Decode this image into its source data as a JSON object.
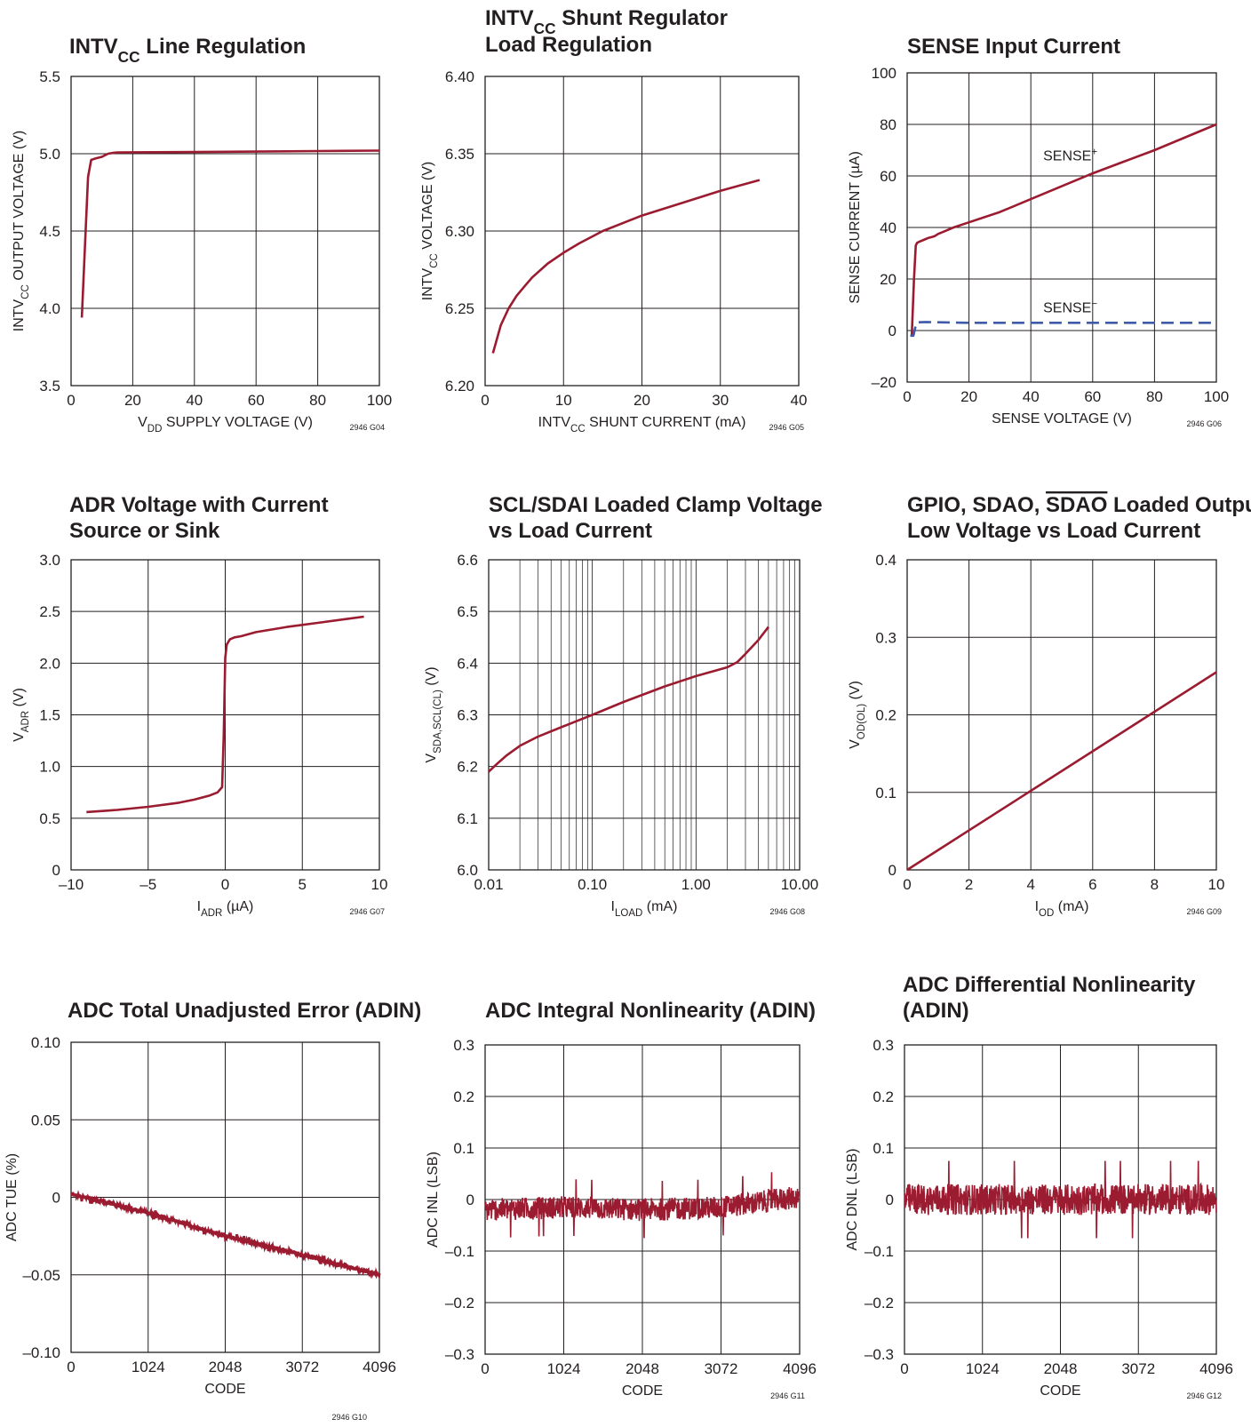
{
  "colors": {
    "curve": "#9b1b30",
    "dashed": "#3e5aa8",
    "ink": "#231f20"
  },
  "chart_data": [
    {
      "type": "line",
      "title": [
        "INTV|CC| Line Regulation"
      ],
      "xlabel": "V|DD| SUPPLY VOLTAGE (V)",
      "ylabel": "INTV|CC| OUTPUT VOLTAGE (V)",
      "code": "2946 G04",
      "xlim": [
        0,
        100
      ],
      "ylim": [
        3.5,
        5.5
      ],
      "xticks": [
        0,
        20,
        40,
        60,
        80,
        100
      ],
      "xtick_labels": [
        "0",
        "20",
        "40",
        "60",
        "80",
        "100"
      ],
      "yticks": [
        3.5,
        4.0,
        4.5,
        5.0,
        5.5
      ],
      "ytick_labels": [
        "3.5",
        "4.0",
        "4.5",
        "5.0",
        "5.5"
      ],
      "grid": true,
      "series": [
        {
          "x": [
            3.5,
            4.5,
            5.5,
            6.5,
            8,
            10,
            12,
            13.5,
            15,
            20,
            40,
            60,
            80,
            100
          ],
          "y": [
            3.94,
            4.4,
            4.85,
            4.96,
            4.97,
            4.98,
            5.0,
            5.005,
            5.008,
            5.009,
            5.011,
            5.014,
            5.017,
            5.02
          ]
        }
      ]
    },
    {
      "type": "line",
      "title": [
        "INTV|CC| Shunt Regulator",
        "Load Regulation"
      ],
      "xlabel": "INTV|CC| SHUNT CURRENT (mA)",
      "ylabel": "INTV|CC| VOLTAGE (V)",
      "code": "2946 G05",
      "xlim": [
        0,
        40
      ],
      "ylim": [
        6.2,
        6.4
      ],
      "xticks": [
        0,
        10,
        20,
        30,
        40
      ],
      "xtick_labels": [
        "0",
        "10",
        "20",
        "30",
        "40"
      ],
      "yticks": [
        6.2,
        6.25,
        6.3,
        6.35,
        6.4
      ],
      "ytick_labels": [
        "6.20",
        "6.25",
        "6.30",
        "6.35",
        "6.40"
      ],
      "grid": true,
      "series": [
        {
          "x": [
            1,
            1.5,
            2,
            3,
            4,
            5,
            6,
            8,
            10,
            12,
            15,
            20,
            25,
            30,
            35
          ],
          "y": [
            6.221,
            6.23,
            6.239,
            6.25,
            6.258,
            6.264,
            6.27,
            6.279,
            6.286,
            6.292,
            6.3,
            6.31,
            6.318,
            6.326,
            6.333
          ]
        }
      ]
    },
    {
      "type": "line",
      "title": [
        "SENSE Input Current"
      ],
      "xlabel": "SENSE VOLTAGE (V)",
      "ylabel": "SENSE CURRENT (µA)",
      "code": "2946 G06",
      "xlim": [
        0,
        100
      ],
      "ylim": [
        -20,
        100
      ],
      "xticks": [
        0,
        20,
        40,
        60,
        80,
        100
      ],
      "xtick_labels": [
        "0",
        "20",
        "40",
        "60",
        "80",
        "100"
      ],
      "yticks": [
        -20,
        0,
        20,
        40,
        60,
        80,
        100
      ],
      "ytick_labels": [
        "–20",
        "0",
        "20",
        "40",
        "60",
        "80",
        "100"
      ],
      "grid": true,
      "series": [
        {
          "name": "SENSE|+|",
          "x": [
            1.5,
            2.2,
            2.8,
            3.2,
            4,
            5,
            6,
            7,
            8,
            9,
            10,
            12,
            15,
            20,
            30,
            40,
            50,
            60,
            70,
            80,
            90,
            100
          ],
          "y": [
            -2,
            20,
            33,
            34,
            34.5,
            35,
            35.5,
            36,
            36.3,
            36.7,
            37.5,
            38.5,
            40,
            42,
            46,
            51,
            56,
            61,
            65.5,
            70,
            75,
            80
          ]
        },
        {
          "name": "SENSE|−|",
          "style": "dashed",
          "x": [
            1,
            2,
            3,
            4,
            6,
            10,
            20,
            40,
            60,
            80,
            100
          ],
          "y": [
            -2,
            -2,
            3,
            3.2,
            3.3,
            3.2,
            3,
            3,
            3,
            3,
            3
          ]
        }
      ],
      "annotations": [
        "SENSE|+|",
        "SENSE|−|"
      ]
    },
    {
      "type": "line",
      "title": [
        "ADR Voltage with Current",
        "Source or Sink"
      ],
      "xlabel": "I|ADR| (µA)",
      "ylabel": "V|ADR| (V)",
      "code": "2946 G07",
      "xlim": [
        -10,
        10
      ],
      "ylim": [
        0,
        3.0
      ],
      "xticks": [
        -10,
        -5,
        0,
        5,
        10
      ],
      "xtick_labels": [
        "–10",
        "–5",
        "0",
        "5",
        "10"
      ],
      "yticks": [
        0,
        0.5,
        1.0,
        1.5,
        2.0,
        2.5,
        3.0
      ],
      "ytick_labels": [
        "0",
        "0.5",
        "1.0",
        "1.5",
        "2.0",
        "2.5",
        "3.0"
      ],
      "grid": true,
      "series": [
        {
          "x": [
            -9,
            -7,
            -5,
            -3,
            -2,
            -1,
            -0.5,
            -0.2,
            -0.1,
            0,
            0.1,
            0.3,
            0.6,
            1,
            2,
            4,
            6,
            8,
            9
          ],
          "y": [
            0.56,
            0.58,
            0.61,
            0.65,
            0.68,
            0.72,
            0.75,
            0.8,
            1.3,
            2.05,
            2.18,
            2.23,
            2.25,
            2.26,
            2.3,
            2.35,
            2.39,
            2.43,
            2.45
          ]
        }
      ]
    },
    {
      "type": "line",
      "title": [
        "SCL/SDAI Loaded Clamp Voltage",
        "vs Load Current"
      ],
      "xlabel": "I|LOAD| (mA)",
      "ylabel": "V|SDA,SCL(CL)| (V)",
      "code": "2946 G08",
      "xscale": "log",
      "xlim": [
        0.01,
        10
      ],
      "ylim": [
        6.0,
        6.6
      ],
      "xticks": [
        0.01,
        0.1,
        1,
        10
      ],
      "xtick_labels": [
        "0.01",
        "0.10",
        "1.00",
        "10.00"
      ],
      "yticks": [
        6.0,
        6.1,
        6.2,
        6.3,
        6.4,
        6.5,
        6.6
      ],
      "ytick_labels": [
        "6.0",
        "6.1",
        "6.2",
        "6.3",
        "6.4",
        "6.5",
        "6.6"
      ],
      "grid": true,
      "series": [
        {
          "x": [
            0.01,
            0.012,
            0.015,
            0.02,
            0.03,
            0.05,
            0.1,
            0.2,
            0.5,
            1,
            1.5,
            2,
            2.5,
            3,
            4,
            5
          ],
          "y": [
            6.19,
            6.205,
            6.222,
            6.24,
            6.258,
            6.276,
            6.3,
            6.325,
            6.355,
            6.375,
            6.385,
            6.392,
            6.402,
            6.418,
            6.445,
            6.47
          ]
        }
      ]
    },
    {
      "type": "line",
      "title": [
        "GPIO, SDAO, |ov:SDAO| Loaded Output",
        "Low Voltage vs Load Current"
      ],
      "xlabel": "I|OD| (mA)",
      "ylabel": "V|OD(OL)| (V)",
      "code": "2946 G09",
      "xlim": [
        0,
        10
      ],
      "ylim": [
        0,
        0.4
      ],
      "xticks": [
        0,
        2,
        4,
        6,
        8,
        10
      ],
      "xtick_labels": [
        "0",
        "2",
        "4",
        "6",
        "8",
        "10"
      ],
      "yticks": [
        0,
        0.1,
        0.2,
        0.3,
        0.4
      ],
      "ytick_labels": [
        "0",
        "0.1",
        "0.2",
        "0.3",
        "0.4"
      ],
      "grid": true,
      "series": [
        {
          "x": [
            0,
            10
          ],
          "y": [
            0,
            0.255
          ]
        }
      ]
    },
    {
      "type": "line",
      "title": [
        "ADC Total Unadjusted Error (ADIN)"
      ],
      "xlabel": "CODE",
      "ylabel": "ADC TUE (%)",
      "code": "2946 G10",
      "xlim": [
        0,
        4096
      ],
      "ylim": [
        -0.1,
        0.1
      ],
      "xticks": [
        0,
        1024,
        2048,
        3072,
        4096
      ],
      "xtick_labels": [
        "0",
        "1024",
        "2048",
        "3072",
        "4096"
      ],
      "yticks": [
        -0.1,
        -0.05,
        0,
        0.05,
        0.1
      ],
      "ytick_labels": [
        "–0.10",
        "–0.05",
        "0",
        "0.05",
        "0.10"
      ],
      "grid": true,
      "series": [
        {
          "x": [
            0,
            1024,
            2048,
            3072,
            4096
          ],
          "y": [
            0.002,
            -0.01,
            -0.025,
            -0.037,
            -0.05
          ],
          "noise": 0.0012
        }
      ]
    },
    {
      "type": "line",
      "title": [
        "ADC Integral Nonlinearity (ADIN)"
      ],
      "xlabel": "CODE",
      "ylabel": "ADC INL (LSB)",
      "code": "2946 G11",
      "xlim": [
        0,
        4096
      ],
      "ylim": [
        -0.3,
        0.3
      ],
      "xticks": [
        0,
        1024,
        2048,
        3072,
        4096
      ],
      "xtick_labels": [
        "0",
        "1024",
        "2048",
        "3072",
        "4096"
      ],
      "yticks": [
        -0.3,
        -0.2,
        -0.1,
        0,
        0.1,
        0.2,
        0.3
      ],
      "ytick_labels": [
        "–0.3",
        "–0.2",
        "–0.1",
        "0",
        "0.1",
        "0.2",
        "0.3"
      ],
      "grid": true,
      "series": [
        {
          "x": [
            0,
            1024,
            2048,
            3072,
            4096
          ],
          "y": [
            -0.02,
            -0.015,
            -0.02,
            -0.015,
            0.005
          ],
          "noise": 0.022,
          "range": [
            -0.125,
            0.065
          ]
        }
      ]
    },
    {
      "type": "line",
      "title": [
        "ADC Differential Nonlinearity",
        "(ADIN)"
      ],
      "xlabel": "CODE",
      "ylabel": "ADC DNL (LSB)",
      "code": "2946 G12",
      "xlim": [
        0,
        4096
      ],
      "ylim": [
        -0.3,
        0.3
      ],
      "xticks": [
        0,
        1024,
        2048,
        3072,
        4096
      ],
      "xtick_labels": [
        "0",
        "1024",
        "2048",
        "3072",
        "4096"
      ],
      "yticks": [
        -0.3,
        -0.2,
        -0.1,
        0,
        0.1,
        0.2,
        0.3
      ],
      "ytick_labels": [
        "–0.3",
        "–0.2",
        "–0.1",
        "0",
        "0.1",
        "0.2",
        "0.3"
      ],
      "grid": true,
      "series": [
        {
          "x": [
            0,
            4096
          ],
          "y": [
            0,
            0
          ],
          "noise": 0.03,
          "range": [
            -0.08,
            0.09
          ]
        }
      ]
    }
  ]
}
